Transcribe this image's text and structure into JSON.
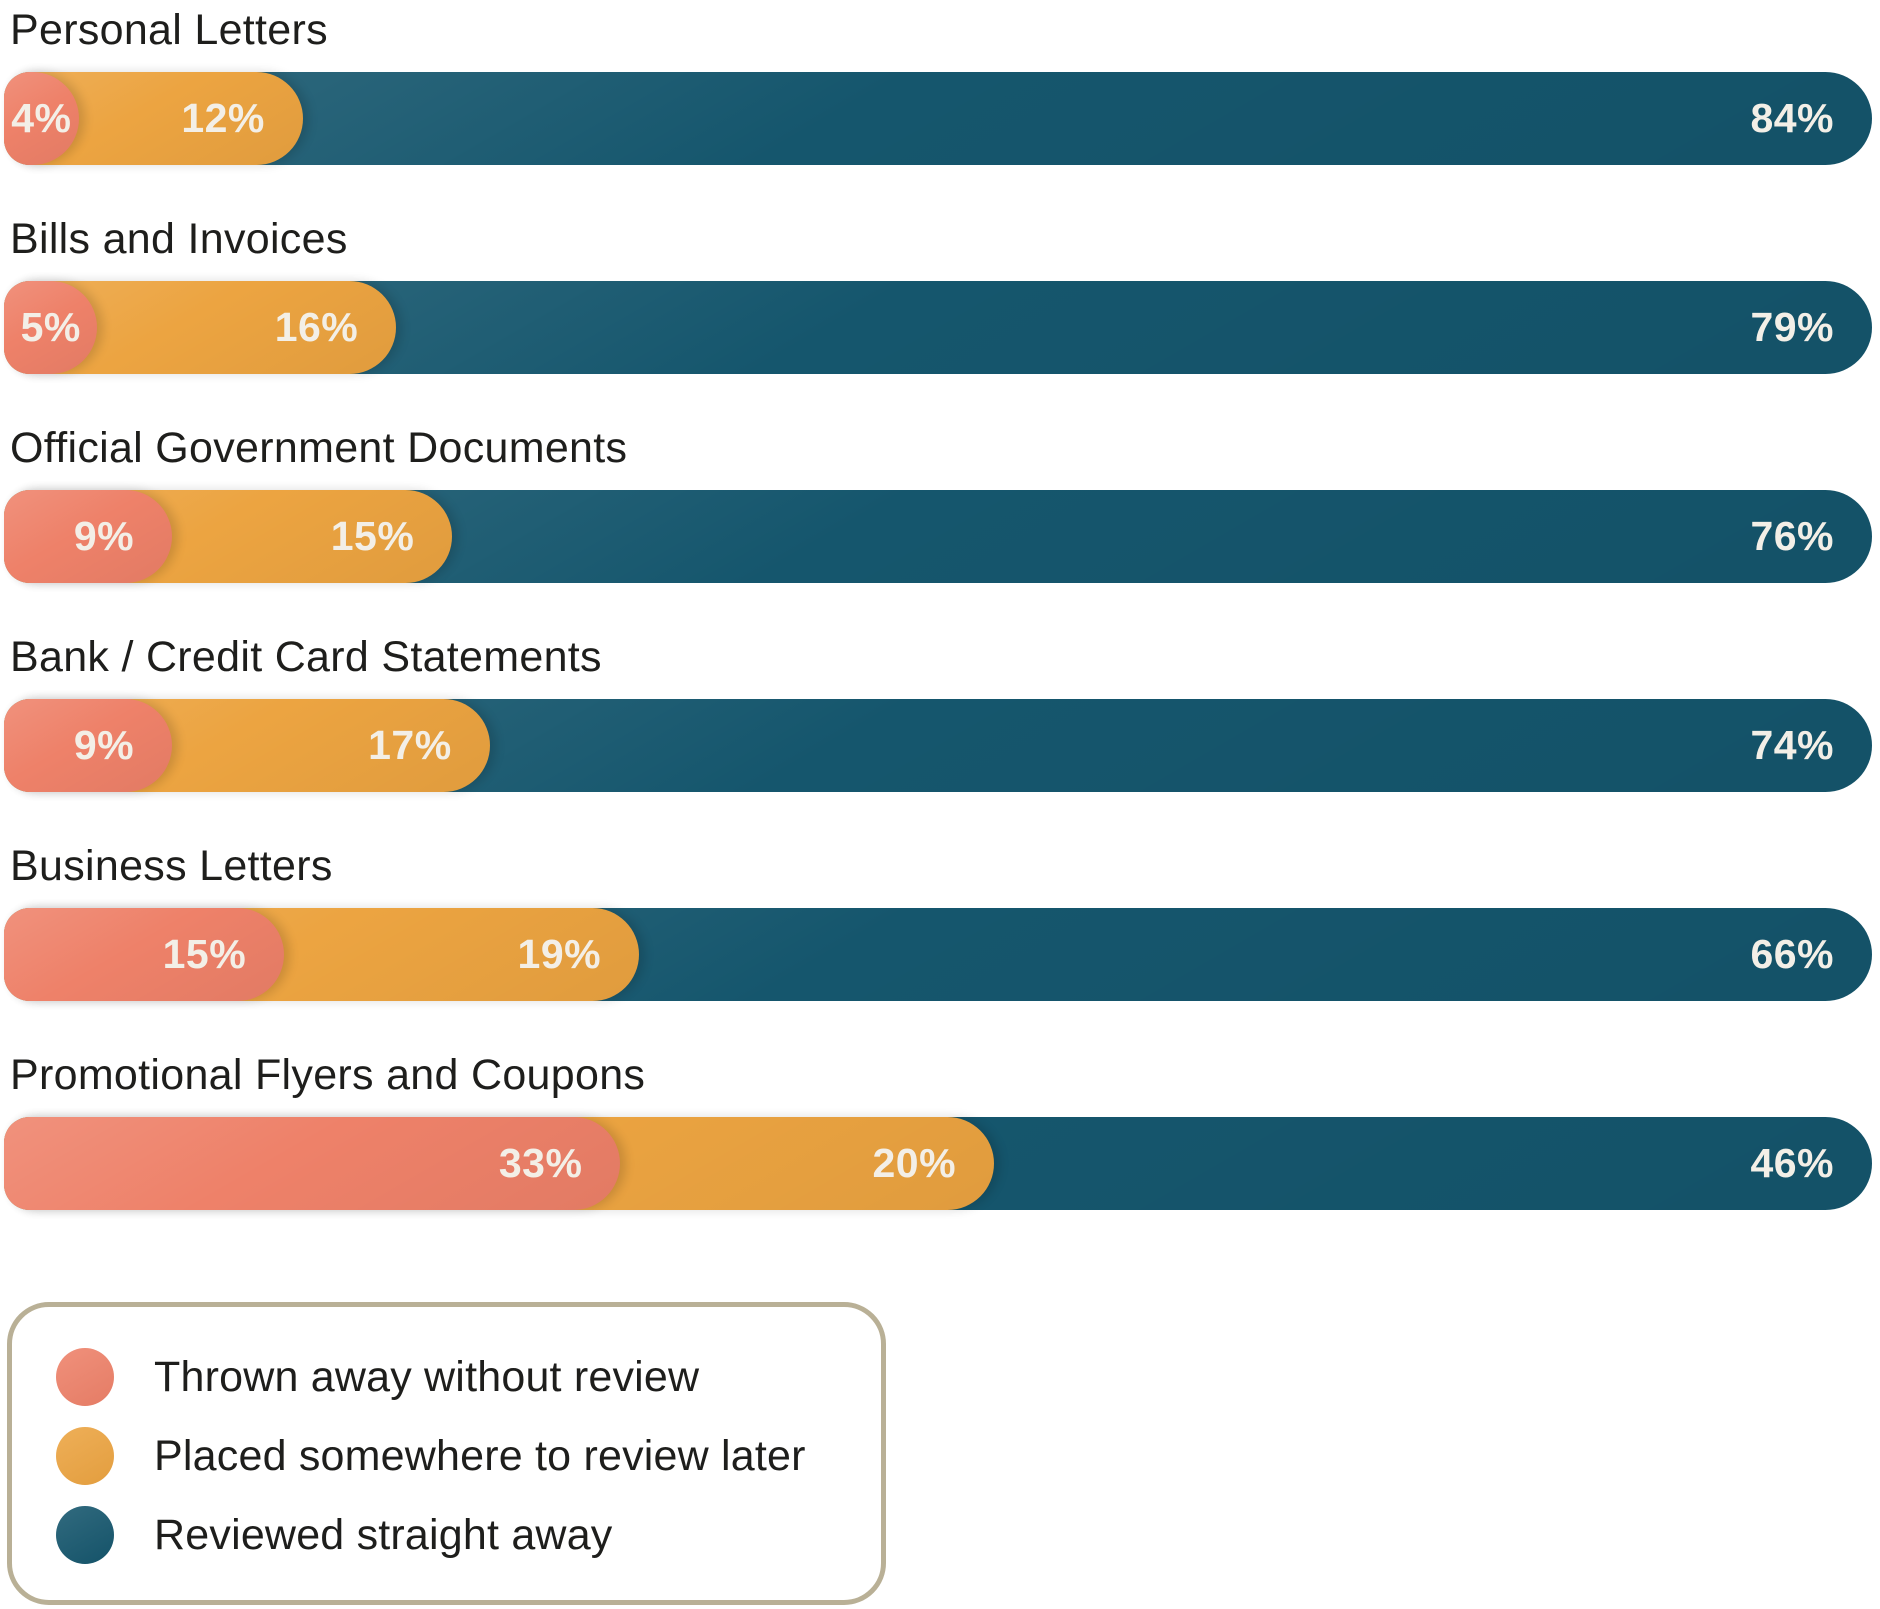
{
  "chart_data": {
    "type": "bar",
    "orientation": "horizontal",
    "stacked": true,
    "unit": "%",
    "categories": [
      "Personal Letters",
      "Bills and Invoices",
      "Official Government Documents",
      "Bank / Credit Card Statements",
      "Business Letters",
      "Promotional Flyers and Coupons"
    ],
    "series": [
      {
        "name": "Thrown away without review",
        "color": "#EE8169",
        "values": [
          4,
          5,
          9,
          9,
          15,
          33
        ]
      },
      {
        "name": "Placed somewhere to review later",
        "color": "#ECA441",
        "values": [
          12,
          16,
          15,
          17,
          19,
          20
        ]
      },
      {
        "name": "Reviewed straight away",
        "color": "#15566D",
        "values": [
          84,
          79,
          76,
          74,
          66,
          46
        ]
      }
    ],
    "value_labels": "inside-segments, right-aligned, suffixed with %",
    "xlim": [
      0,
      100
    ],
    "grid": false,
    "legend_position": "bottom-left"
  },
  "legend": {
    "items": [
      {
        "label": "Thrown away without review",
        "color": "#EE8169"
      },
      {
        "label": "Placed somewhere to review later",
        "color": "#ECA441"
      },
      {
        "label": "Reviewed straight away",
        "color": "#15566D"
      }
    ]
  },
  "styles": {
    "title_color": "#1E1E1C",
    "value_label_color": "#F3EFE7",
    "legend_border_color": "#B9B096",
    "background": "#FFFFFF"
  }
}
